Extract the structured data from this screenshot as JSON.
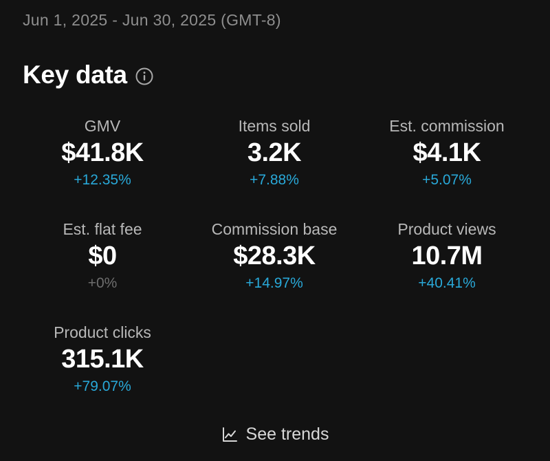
{
  "date_range": "Jun 1, 2025 - Jun 30, 2025 (GMT-8)",
  "section": {
    "title": "Key data",
    "info_icon": "info-icon"
  },
  "metrics": [
    {
      "label": "GMV",
      "value": "$41.8K",
      "delta": "+12.35%"
    },
    {
      "label": "Items sold",
      "value": "3.2K",
      "delta": "+7.88%"
    },
    {
      "label": "Est. commission",
      "value": "$4.1K",
      "delta": "+5.07%"
    },
    {
      "label": "Est. flat fee",
      "value": "$0",
      "delta": "+0%"
    },
    {
      "label": "Commission base",
      "value": "$28.3K",
      "delta": "+14.97%"
    },
    {
      "label": "Product views",
      "value": "10.7M",
      "delta": "+40.41%"
    },
    {
      "label": "Product clicks",
      "value": "315.1K",
      "delta": "+79.07%"
    }
  ],
  "colors": {
    "background": "#121212",
    "positive_delta": "#29a9d9",
    "neutral_delta": "#6e6e6e"
  },
  "see_trends": {
    "label": "See trends",
    "icon": "line-chart-icon"
  }
}
